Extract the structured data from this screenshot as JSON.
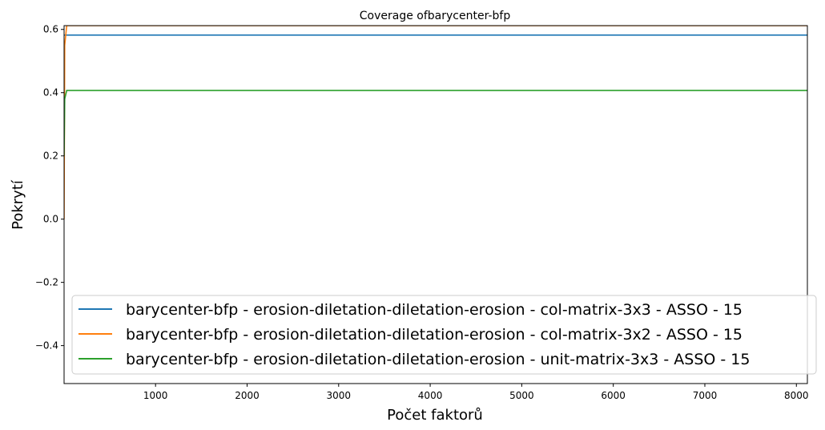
{
  "chart_data": {
    "type": "line",
    "title": "Coverage ofbarycenter-bfp",
    "xlabel": "Počet faktorů",
    "ylabel": "Pokrytí",
    "xlim": [
      1,
      8120
    ],
    "ylim": [
      -0.52,
      0.612
    ],
    "x_ticks": [
      1000,
      2000,
      3000,
      4000,
      5000,
      6000,
      7000,
      8000
    ],
    "x_tick_labels": [
      "1000",
      "2000",
      "3000",
      "4000",
      "5000",
      "6000",
      "7000",
      "8000"
    ],
    "y_ticks": [
      0.6,
      0.4,
      0.2,
      0.0,
      -0.2,
      -0.4
    ],
    "y_tick_labels": [
      "0.6",
      "0.4",
      "0.2",
      "0.0",
      "−0.2",
      "−0.4"
    ],
    "grid": false,
    "legend_position": "lower-center",
    "series": [
      {
        "name": "barycenter-bfp - erosion-diletation-diletation-erosion - col-matrix-3x3 - ASSO - 15",
        "color": "#1f77b4",
        "x": [
          1,
          8120
        ],
        "y": [
          0.582,
          0.582
        ]
      },
      {
        "name": "barycenter-bfp - erosion-diletation-diletation-erosion - col-matrix-3x2 - ASSO - 15",
        "color": "#ff7f0e",
        "x": [
          1,
          8,
          30,
          8120
        ],
        "y": [
          0.0,
          0.55,
          0.612,
          0.612
        ]
      },
      {
        "name": "barycenter-bfp - erosion-diletation-diletation-erosion - unit-matrix-3x3 - ASSO - 15",
        "color": "#2ca02c",
        "x": [
          1,
          8,
          30,
          8120
        ],
        "y": [
          0.2,
          0.38,
          0.407,
          0.407
        ]
      }
    ]
  }
}
